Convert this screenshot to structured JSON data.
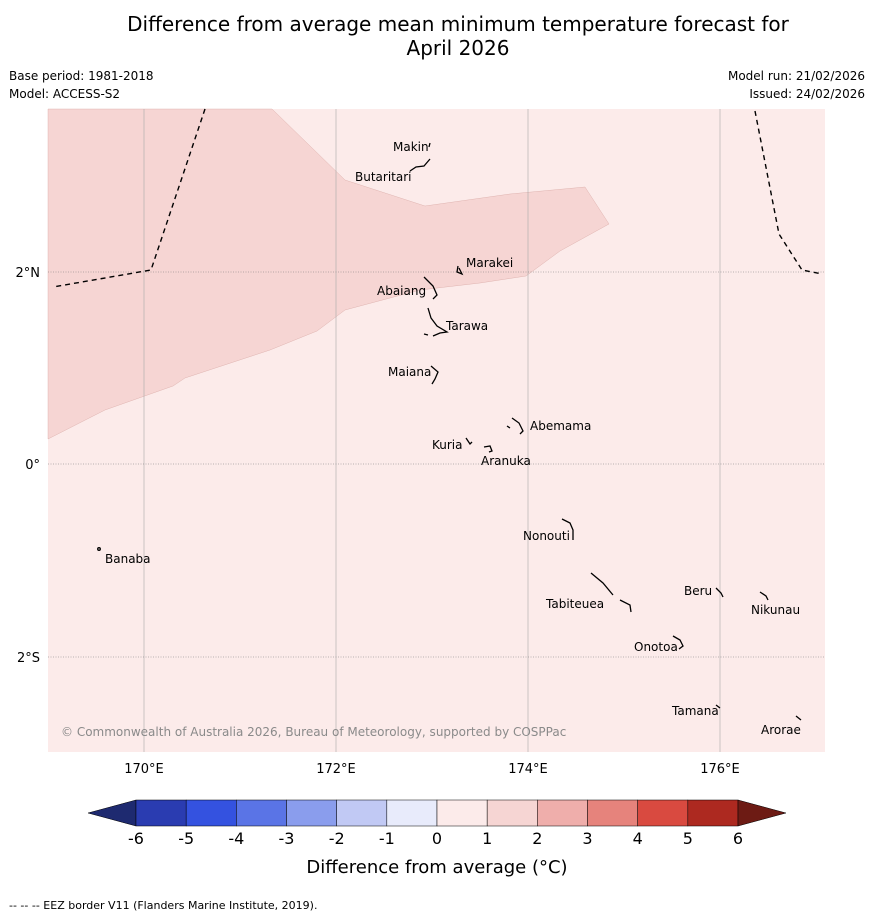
{
  "title": {
    "line1": "Difference from average mean minimum temperature forecast for",
    "line2": "April 2026"
  },
  "meta": {
    "base_period": "Base period: 1981-2018",
    "model": "Model: ACCESS-S2",
    "model_run": "Model run: 21/02/2026",
    "issued": "Issued: 24/02/2026"
  },
  "map": {
    "copyright": "© Commonwealth of Australia 2026, Bureau of Meteorology, supported by COSPPac",
    "background_category": "0 to 1",
    "shaded_region_category": "1 to 2",
    "lon_ticks": [
      "170°E",
      "172°E",
      "174°E",
      "176°E"
    ],
    "lat_ticks": [
      "2°N",
      "0°",
      "2°S"
    ],
    "islands": [
      {
        "name": "Makin"
      },
      {
        "name": "Butaritari"
      },
      {
        "name": "Marakei"
      },
      {
        "name": "Abaiang"
      },
      {
        "name": "Tarawa"
      },
      {
        "name": "Maiana"
      },
      {
        "name": "Abemama"
      },
      {
        "name": "Kuria"
      },
      {
        "name": "Aranuka"
      },
      {
        "name": "Banaba"
      },
      {
        "name": "Nonouti"
      },
      {
        "name": "Beru"
      },
      {
        "name": "Nikunau"
      },
      {
        "name": "Tabiteuea"
      },
      {
        "name": "Onotoa"
      },
      {
        "name": "Tamana"
      },
      {
        "name": "Arorae"
      }
    ]
  },
  "colorbar": {
    "label": "Difference from average (°C)",
    "ticks": [
      "-6",
      "-5",
      "-4",
      "-3",
      "-2",
      "-1",
      "0",
      "1",
      "2",
      "3",
      "4",
      "5",
      "6"
    ],
    "colors": {
      "under": "#1e2a70",
      "bins": [
        "#2a3cb1",
        "#3452e0",
        "#5a74e6",
        "#8a9ded",
        "#c1c9f4",
        "#e8ebfb",
        "#fcebea",
        "#f6d5d3",
        "#efaeab",
        "#e6837c",
        "#d94a40",
        "#ad2920"
      ],
      "over": "#6d1b14"
    }
  },
  "footnote": "-- -- -- EEZ border V11 (Flanders Marine Institute, 2019)."
}
